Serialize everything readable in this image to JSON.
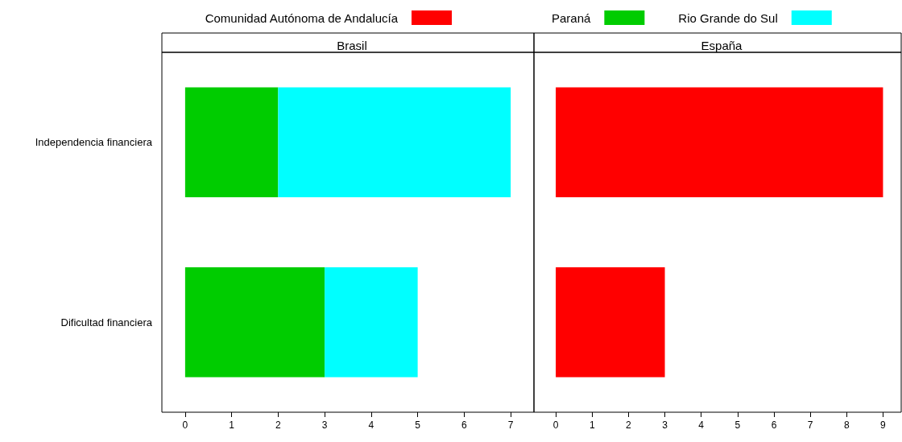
{
  "chart_data": [
    {
      "type": "bar",
      "title": "Brasil",
      "orientation": "horizontal",
      "stacked": true,
      "categories": [
        "Independencia financiera",
        "Dificultad financiera"
      ],
      "series": [
        {
          "name": "Paraná",
          "color": "#00cc00",
          "values": [
            2,
            3
          ]
        },
        {
          "name": "Rio Grande do Sul",
          "color": "#00ffff",
          "values": [
            5,
            2
          ]
        }
      ],
      "xlim": [
        -0.5,
        7.5
      ],
      "xticks": [
        0,
        1,
        2,
        3,
        4,
        5,
        6,
        7
      ],
      "grid": false,
      "legend": "top"
    },
    {
      "type": "bar",
      "title": "España",
      "orientation": "horizontal",
      "stacked": true,
      "categories": [
        "Independencia financiera",
        "Dificultad financiera"
      ],
      "series": [
        {
          "name": "Comunidad Autónoma de Andalucía",
          "color": "#ff0000",
          "values": [
            9,
            3
          ]
        }
      ],
      "xlim": [
        -0.6,
        9.5
      ],
      "xticks": [
        0,
        1,
        2,
        3,
        4,
        5,
        6,
        7,
        8,
        9
      ],
      "grid": false,
      "legend": "top",
      "tick_labels": "x"
    }
  ]
}
